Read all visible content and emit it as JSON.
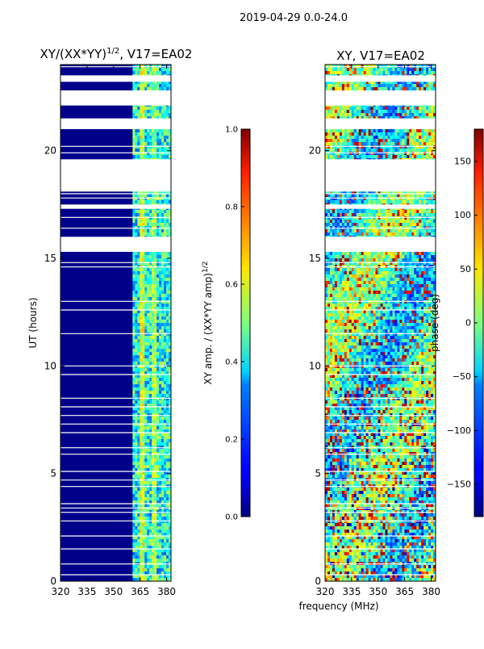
{
  "suptitle": "2019-04-29 0.0-24.0",
  "chart_data": [
    {
      "type": "heatmap",
      "title": "XY/(XX*YY)",
      "title_exp": "1/2",
      "title_suffix": ", V17=EA02",
      "xlabel": "",
      "ylabel": "UT (hours)",
      "xlim": [
        320,
        382.5
      ],
      "ylim": [
        0,
        24
      ],
      "xticks": [
        "320",
        "335",
        "350",
        "365",
        "380"
      ],
      "yticks": [
        "0",
        "5",
        "10",
        "15",
        "20"
      ],
      "colorbar": {
        "label": "XY amp. / (XX*YY amp)",
        "label_exp": "1/2",
        "range": [
          0.0,
          1.0
        ],
        "ticks": [
          "0.0",
          "0.2",
          "0.4",
          "0.6",
          "0.8",
          "1.0"
        ]
      }
    },
    {
      "type": "heatmap",
      "title": "XY, V17=EA02",
      "xlabel": "frequency (MHz)",
      "ylabel": "",
      "xlim": [
        320,
        382.5
      ],
      "ylim": [
        0,
        24
      ],
      "xticks": [
        "320",
        "335",
        "350",
        "365",
        "380"
      ],
      "yticks": [
        "0",
        "5",
        "10",
        "15",
        "20"
      ],
      "colorbar": {
        "label": "phase (deg)",
        "range": [
          -180,
          180
        ],
        "ticks": [
          "−150",
          "−100",
          "−50",
          "0",
          "50",
          "100",
          "150"
        ]
      }
    }
  ],
  "colors": {
    "masked": "#ffffff",
    "background": "#ffffff",
    "axis": "#000000"
  }
}
